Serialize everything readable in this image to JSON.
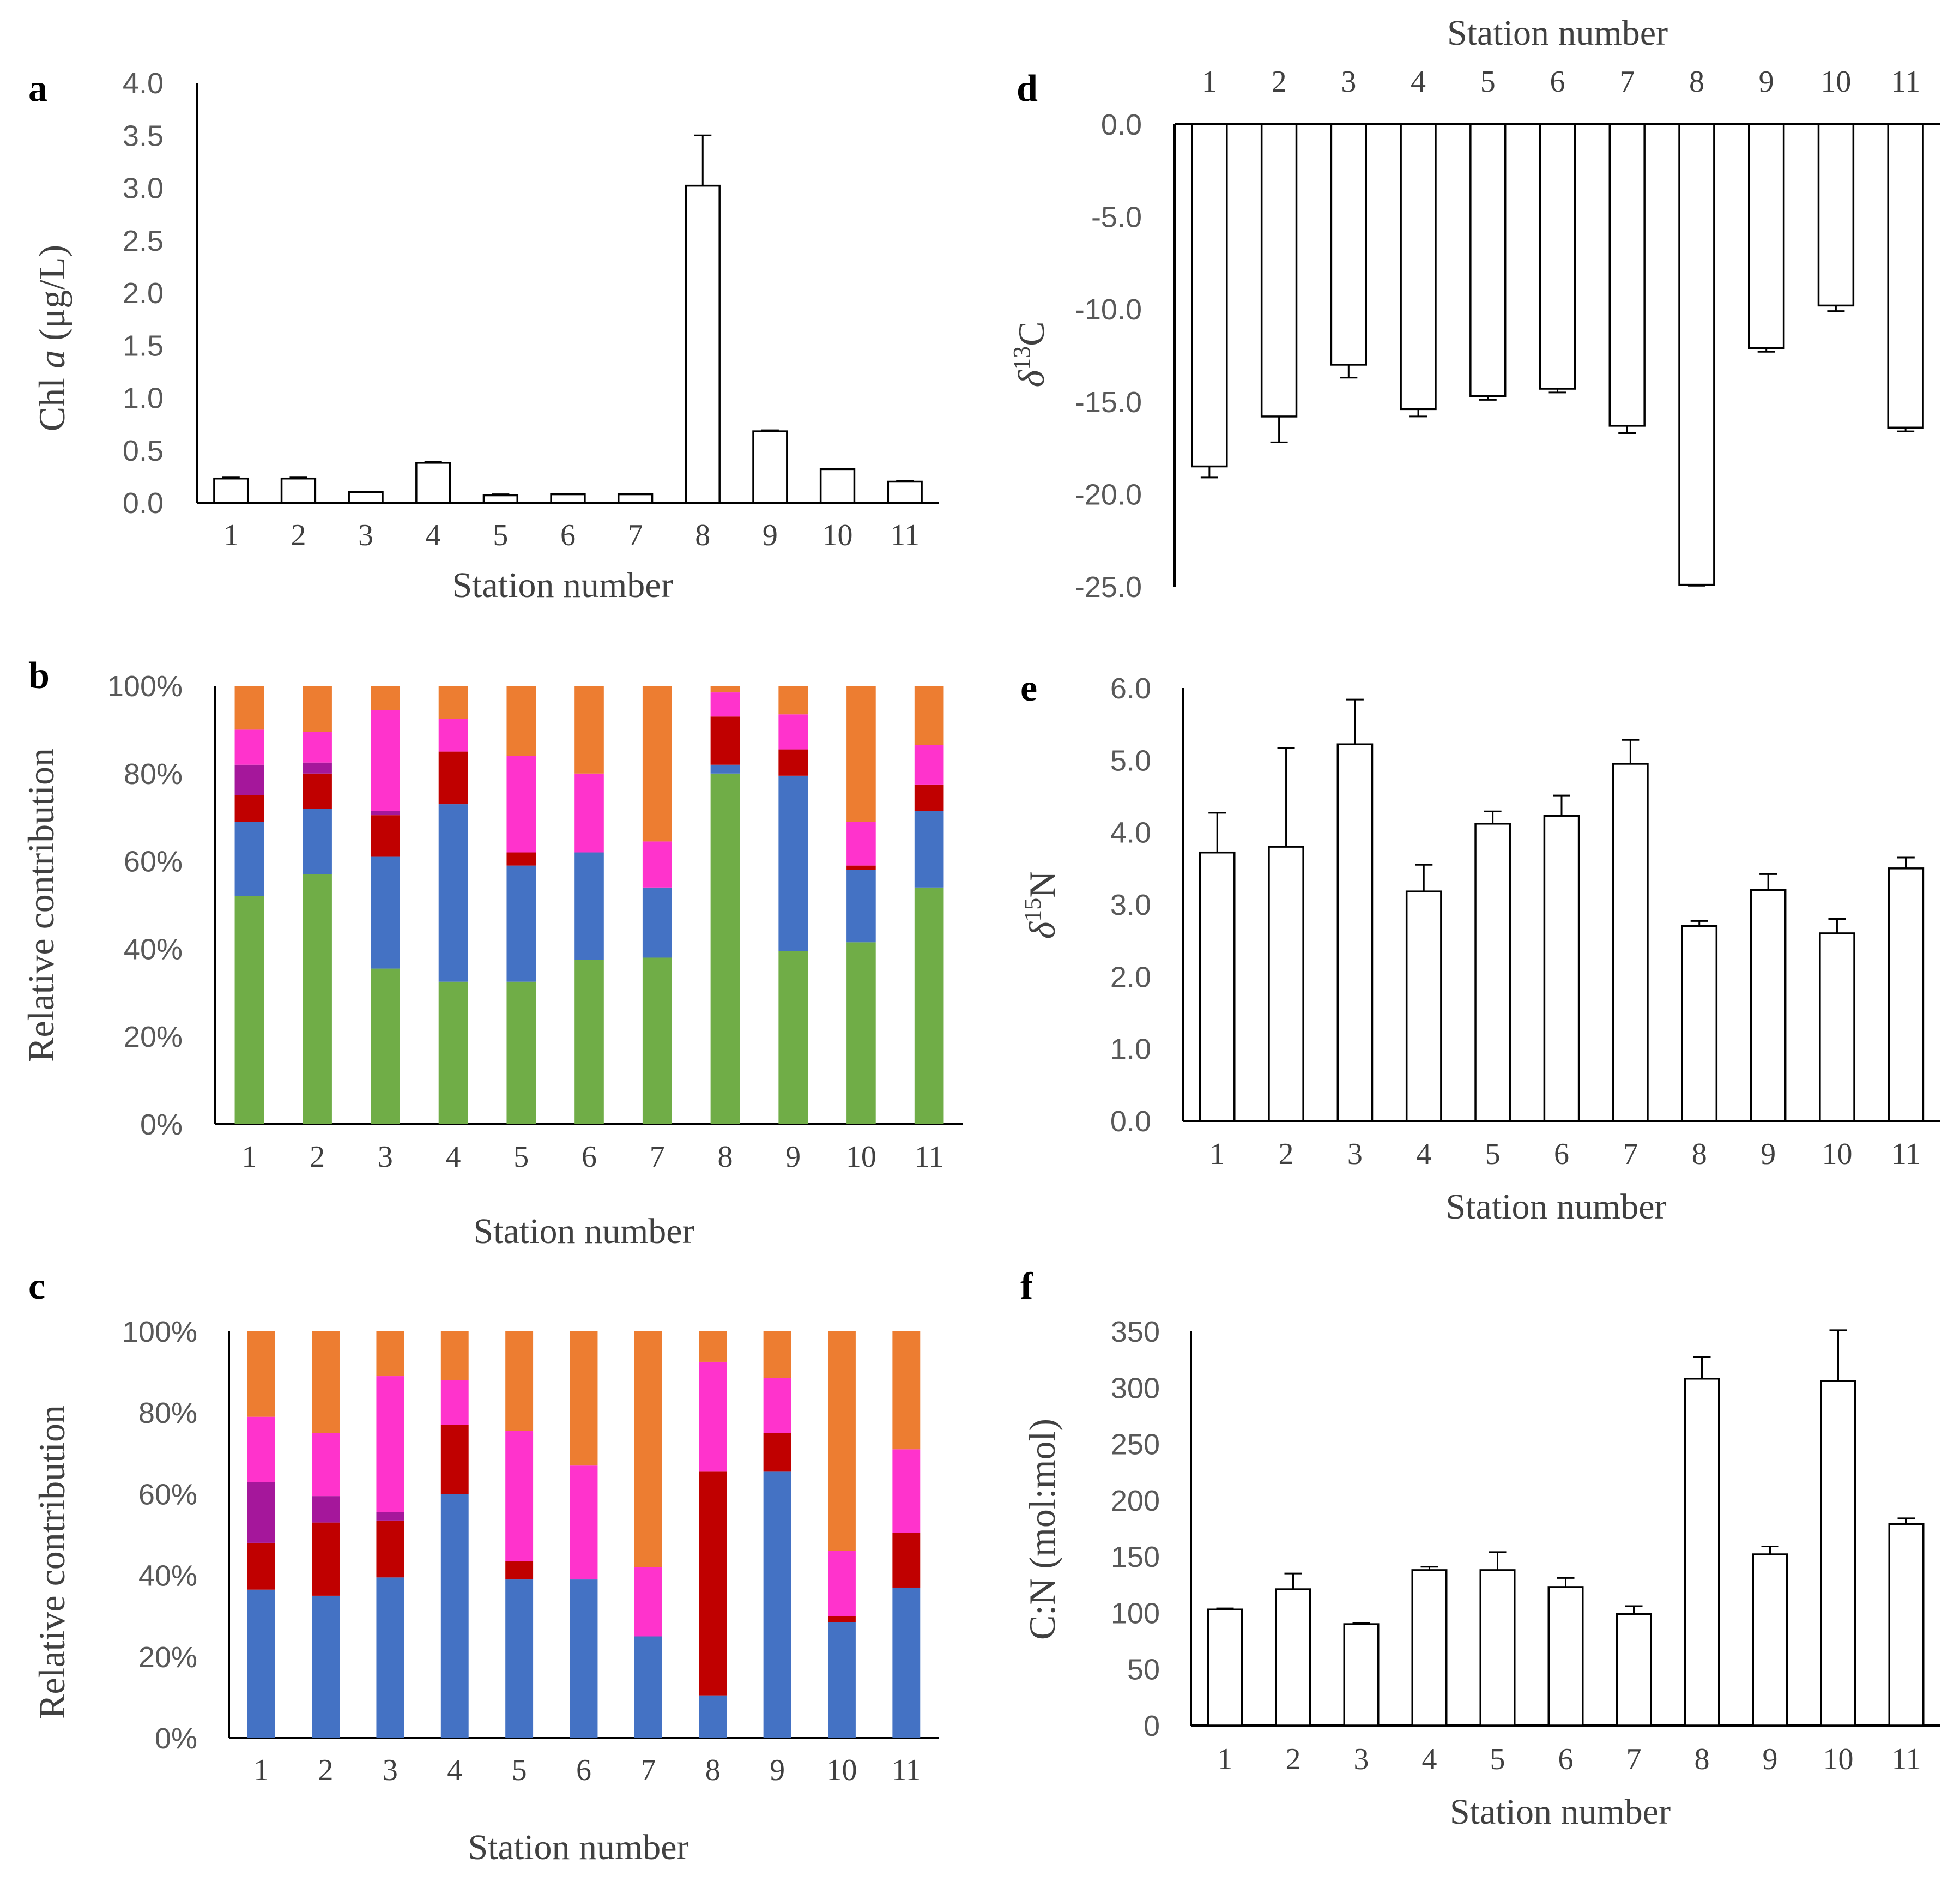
{
  "colors": {
    "green": "#70AD47",
    "blue": "#4472C4",
    "red": "#C00000",
    "purple": "#A5179B",
    "magenta": "#FF33CC",
    "orange": "#ED7D31"
  },
  "chart_data": [
    {
      "id": "a",
      "panel_label": "a",
      "type": "bar",
      "categories": [
        "1",
        "2",
        "3",
        "4",
        "5",
        "6",
        "7",
        "8",
        "9",
        "10",
        "11"
      ],
      "values": [
        0.23,
        0.23,
        0.1,
        0.38,
        0.07,
        0.08,
        0.08,
        3.02,
        0.68,
        0.32,
        0.2
      ],
      "errors": [
        0.01,
        0.01,
        0.0,
        0.01,
        0.01,
        0.0,
        0.0,
        0.48,
        0.01,
        0.0,
        0.01
      ],
      "ylim": [
        0,
        4
      ],
      "yticks": [
        "0.0",
        "0.5",
        "1.0",
        "1.5",
        "2.0",
        "2.5",
        "3.0",
        "3.5",
        "4.0"
      ],
      "xlabel": "Station number",
      "ylabel": "Chl a (μg/L)",
      "ylabel_prefix": "Chl ",
      "ylabel_italic": "a",
      "ylabel_suffix": " (μg/L)"
    },
    {
      "id": "b",
      "panel_label": "b",
      "type": "stacked-bar",
      "categories": [
        "1",
        "2",
        "3",
        "4",
        "5",
        "6",
        "7",
        "8",
        "9",
        "10",
        "11"
      ],
      "series": [
        {
          "color": "green",
          "values": [
            52,
            57,
            35.5,
            32.5,
            32.5,
            37.5,
            38,
            80,
            39.5,
            41.5,
            54
          ]
        },
        {
          "color": "blue",
          "values": [
            17,
            15,
            25.5,
            40.5,
            26.5,
            24.5,
            16,
            2,
            40,
            16.5,
            17.5
          ]
        },
        {
          "color": "red",
          "values": [
            6,
            8,
            9.5,
            12,
            3,
            0,
            0,
            11,
            6,
            1,
            6
          ]
        },
        {
          "color": "purple",
          "values": [
            7,
            2.5,
            1,
            0,
            0,
            0,
            0,
            0,
            0,
            0,
            0
          ]
        },
        {
          "color": "magenta",
          "values": [
            8,
            7,
            23,
            7.5,
            22,
            18,
            10.5,
            5.5,
            8,
            10,
            9
          ]
        },
        {
          "color": "orange",
          "values": [
            10,
            10.5,
            5.5,
            7.5,
            16,
            20,
            35.5,
            1.5,
            6.5,
            31,
            13.5
          ]
        }
      ],
      "ylim": [
        0,
        100
      ],
      "yticks": [
        "0%",
        "20%",
        "40%",
        "60%",
        "80%",
        "100%"
      ],
      "xlabel": "Station number",
      "ylabel": "Relative contribution"
    },
    {
      "id": "c",
      "panel_label": "c",
      "type": "stacked-bar",
      "categories": [
        "1",
        "2",
        "3",
        "4",
        "5",
        "6",
        "7",
        "8",
        "9",
        "10",
        "11"
      ],
      "series": [
        {
          "color": "blue",
          "values": [
            36.5,
            35,
            39.5,
            60,
            39,
            39,
            25,
            10.5,
            65.5,
            28.5,
            37
          ]
        },
        {
          "color": "red",
          "values": [
            11.5,
            18,
            14,
            17,
            4.5,
            0,
            0,
            55,
            9.5,
            1.5,
            13.5
          ]
        },
        {
          "color": "purple",
          "values": [
            15,
            6.5,
            2,
            0,
            0,
            0,
            0,
            0,
            0,
            0,
            0
          ]
        },
        {
          "color": "magenta",
          "values": [
            16,
            15.5,
            33.5,
            11,
            32,
            28,
            17,
            27,
            13.5,
            16,
            20.5
          ]
        },
        {
          "color": "orange",
          "values": [
            21,
            25,
            11,
            12,
            24.5,
            33,
            58,
            7.5,
            11.5,
            54,
            29
          ]
        }
      ],
      "ylim": [
        0,
        100
      ],
      "yticks": [
        "0%",
        "20%",
        "40%",
        "60%",
        "80%",
        "100%"
      ],
      "xlabel": "Station number",
      "ylabel": "Relative contribution"
    },
    {
      "id": "d",
      "panel_label": "d",
      "type": "bar",
      "categories": [
        "1",
        "2",
        "3",
        "4",
        "5",
        "6",
        "7",
        "8",
        "9",
        "10",
        "11"
      ],
      "values": [
        -18.5,
        -15.8,
        -13.0,
        -15.4,
        -14.7,
        -14.3,
        -16.3,
        -24.9,
        -12.1,
        -9.8,
        -16.4
      ],
      "errors": [
        0.6,
        1.4,
        0.7,
        0.4,
        0.2,
        0.2,
        0.4,
        0.05,
        0.2,
        0.3,
        0.2
      ],
      "ylim": [
        -25,
        0
      ],
      "yticks": [
        "0.0",
        "-5.0",
        "-10.0",
        "-15.0",
        "-20.0",
        "-25.0"
      ],
      "xlabel": "Station number",
      "xlabel_position": "top",
      "ylabel": "δ13C",
      "ylabel_symbol": "δ",
      "ylabel_sup": "13",
      "ylabel_element": "C"
    },
    {
      "id": "e",
      "panel_label": "e",
      "type": "bar",
      "categories": [
        "1",
        "2",
        "3",
        "4",
        "5",
        "6",
        "7",
        "8",
        "9",
        "10",
        "11"
      ],
      "values": [
        3.72,
        3.8,
        5.22,
        3.18,
        4.12,
        4.23,
        4.95,
        2.7,
        3.2,
        2.6,
        3.5
      ],
      "errors": [
        0.55,
        1.37,
        0.62,
        0.37,
        0.17,
        0.28,
        0.33,
        0.07,
        0.22,
        0.2,
        0.15
      ],
      "ylim": [
        0,
        6
      ],
      "yticks": [
        "0.0",
        "1.0",
        "2.0",
        "3.0",
        "4.0",
        "5.0",
        "6.0"
      ],
      "xlabel": "Station number",
      "ylabel": "δ15N",
      "ylabel_symbol": "δ",
      "ylabel_sup": "15",
      "ylabel_element": "N"
    },
    {
      "id": "f",
      "panel_label": "f",
      "type": "bar",
      "categories": [
        "1",
        "2",
        "3",
        "4",
        "5",
        "6",
        "7",
        "8",
        "9",
        "10",
        "11"
      ],
      "values": [
        103,
        121,
        90,
        138,
        138,
        123,
        99,
        308,
        152,
        306,
        179
      ],
      "errors": [
        1,
        14,
        1,
        3,
        16,
        8,
        7,
        19,
        7,
        45,
        5
      ],
      "ylim": [
        0,
        350
      ],
      "yticks": [
        "0",
        "50",
        "100",
        "150",
        "200",
        "250",
        "300",
        "350"
      ],
      "xlabel": "Station number",
      "ylabel": "C:N (mol:mol)"
    }
  ]
}
